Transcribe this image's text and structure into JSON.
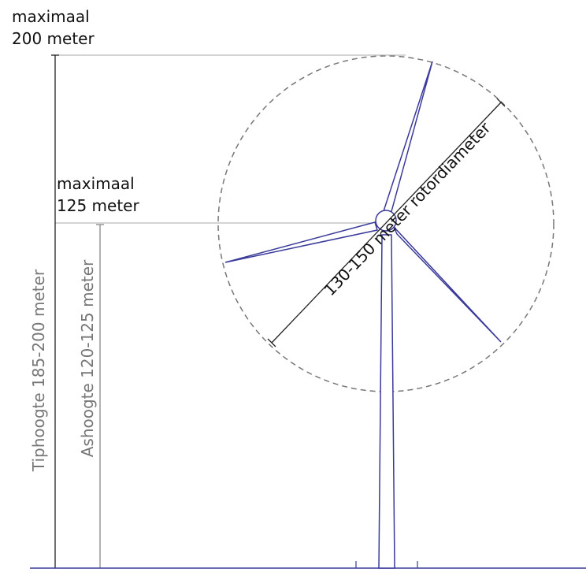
{
  "tip_max": {
    "line1": "maximaal",
    "line2": "200 meter"
  },
  "hub_max": {
    "line1": "maximaal",
    "line2": "125 meter"
  },
  "tip_height": "Tiphoogte 185-200 meter",
  "hub_height": "Ashoogte 120-125 meter",
  "rotor_diameter": "130-150 meter rotordiameter"
}
